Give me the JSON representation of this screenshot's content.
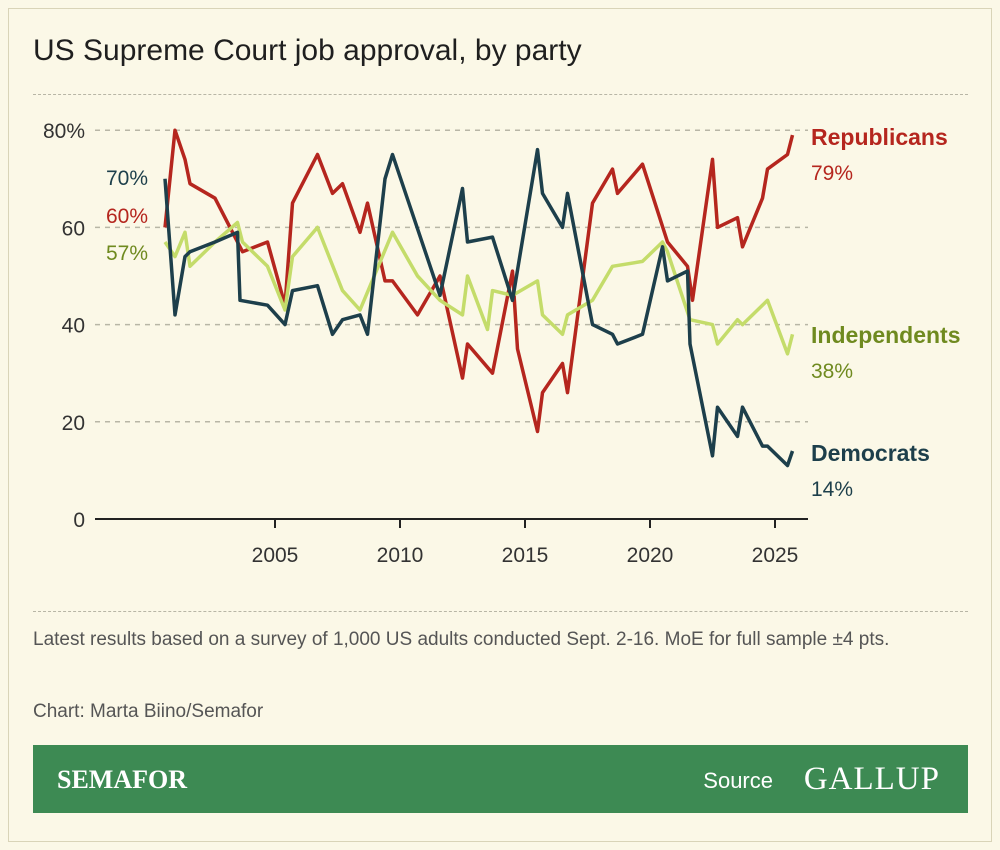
{
  "title": "US Supreme Court job approval, by party",
  "notes": "Latest results based on a survey of 1,000 US adults conducted Sept. 2-16. MoE for full sample ±4 pts.",
  "credit": "Chart: Marta Biino/Semafor",
  "footer": {
    "brand": "SEMAFOR",
    "source_label": "Source",
    "source_logo": "GALLUP"
  },
  "chart_data": {
    "type": "line",
    "title": "US Supreme Court job approval, by party",
    "xlabel": "",
    "ylabel": "",
    "xlim": [
      1998.6,
      2026.3
    ],
    "ylim": [
      0,
      80
    ],
    "x_ticks": [
      2005,
      2010,
      2015,
      2020,
      2025
    ],
    "x_tick_labels": [
      "2005",
      "2010",
      "2015",
      "2020",
      "2025"
    ],
    "y_ticks": [
      0,
      20,
      40,
      60,
      80
    ],
    "y_tick_labels": [
      "0",
      "20",
      "40",
      "60",
      "80%"
    ],
    "grid": "horizontal dashed",
    "start_labels": [
      {
        "series": "Democrats",
        "text": "70%"
      },
      {
        "series": "Republicans",
        "text": "60%"
      },
      {
        "series": "Independents",
        "text": "57%"
      }
    ],
    "series": [
      {
        "name": "Republicans",
        "end_label": "79%",
        "color": "#b5261e",
        "x": [
          2000.6,
          2001.0,
          2001.4,
          2001.6,
          2002.6,
          2003.7,
          2004.7,
          2005.4,
          2005.7,
          2006.7,
          2007.3,
          2007.7,
          2008.4,
          2008.7,
          2009.4,
          2009.7,
          2010.7,
          2011.6,
          2012.5,
          2012.7,
          2013.7,
          2014.5,
          2014.7,
          2015.5,
          2015.7,
          2016.5,
          2016.7,
          2017.7,
          2018.5,
          2018.7,
          2019.7,
          2020.7,
          2021.5,
          2021.7,
          2022.5,
          2022.7,
          2023.5,
          2023.7,
          2024.5,
          2024.7,
          2025.5,
          2025.7
        ],
        "y": [
          60,
          80,
          74,
          69,
          66,
          55,
          57,
          44,
          65,
          75,
          67,
          69,
          59,
          65,
          49,
          49,
          42,
          50,
          29,
          36,
          30,
          51,
          35,
          18,
          26,
          32,
          26,
          65,
          72,
          67,
          73,
          57,
          52,
          45,
          74,
          60,
          62,
          56,
          66,
          72,
          75,
          79
        ]
      },
      {
        "name": "Independents",
        "end_label": "38%",
        "color": "#c4dc6a",
        "x": [
          2000.6,
          2001.0,
          2001.4,
          2001.6,
          2002.6,
          2003.5,
          2003.7,
          2004.7,
          2005.4,
          2005.7,
          2006.7,
          2007.7,
          2008.4,
          2009.7,
          2010.7,
          2011.6,
          2012.5,
          2012.7,
          2013.5,
          2013.7,
          2014.5,
          2015.5,
          2015.7,
          2016.5,
          2016.7,
          2017.7,
          2018.5,
          2019.7,
          2020.5,
          2020.7,
          2021.6,
          2022.5,
          2022.7,
          2023.5,
          2023.7,
          2024.7,
          2025.5,
          2025.7
        ],
        "y": [
          57,
          54,
          59,
          52,
          57,
          61,
          57,
          52,
          43,
          54,
          60,
          47,
          43,
          59,
          50,
          45,
          42,
          50,
          39,
          47,
          46,
          49,
          42,
          38,
          42,
          45,
          52,
          53,
          57,
          55,
          41,
          40,
          36,
          41,
          40,
          45,
          34,
          38
        ]
      },
      {
        "name": "Democrats",
        "end_label": "14%",
        "color": "#1d3f4b",
        "x": [
          2000.6,
          2001.0,
          2001.4,
          2001.6,
          2002.6,
          2003.5,
          2003.6,
          2004.7,
          2005.4,
          2005.7,
          2006.7,
          2007.3,
          2007.7,
          2008.4,
          2008.7,
          2009.4,
          2009.7,
          2011.6,
          2012.5,
          2012.7,
          2013.7,
          2014.5,
          2015.5,
          2015.7,
          2016.5,
          2016.7,
          2017.7,
          2018.5,
          2018.7,
          2019.7,
          2020.5,
          2020.7,
          2021.5,
          2021.6,
          2022.5,
          2022.7,
          2023.5,
          2023.7,
          2024.5,
          2024.7,
          2025.5,
          2025.7
        ],
        "y": [
          70,
          42,
          54,
          55,
          57,
          59,
          45,
          44,
          40,
          47,
          48,
          38,
          41,
          42,
          38,
          70,
          75,
          46,
          68,
          57,
          58,
          45,
          76,
          67,
          60,
          67,
          40,
          38,
          36,
          38,
          56,
          49,
          51,
          36,
          13,
          23,
          17,
          23,
          15,
          15,
          11,
          14
        ]
      }
    ]
  }
}
